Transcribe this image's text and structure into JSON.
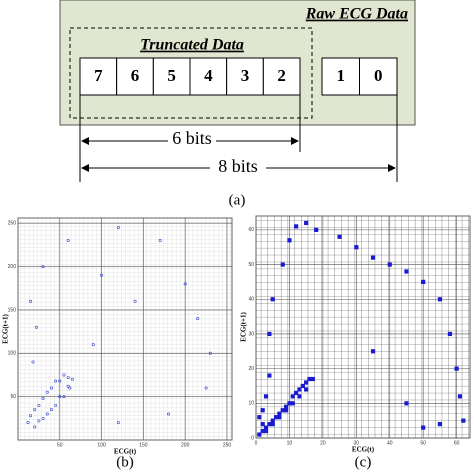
{
  "diagram": {
    "raw_label": "Raw ECG Data",
    "truncated_label": "Truncated Data",
    "kept_bits": [
      "7",
      "6",
      "5",
      "4",
      "3",
      "2"
    ],
    "dropped_bits": [
      "1",
      "0"
    ],
    "short_span": "6 bits",
    "long_span": "8 bits",
    "caption": "(a)"
  },
  "chart_data": [
    {
      "type": "scatter",
      "caption": "(b)",
      "xlabel": "ECG(t)",
      "ylabel": "ECG(t+1)",
      "color": "#3344cc",
      "xlim": [
        0,
        256
      ],
      "ylim": [
        0,
        256
      ],
      "xticks": [
        50,
        100,
        150,
        200,
        250
      ],
      "yticks": [
        50,
        100,
        150,
        200,
        250
      ],
      "grid": true,
      "x": [
        12,
        20,
        30,
        40,
        50,
        60,
        65,
        55,
        45,
        35,
        25,
        15,
        20,
        30,
        40,
        50,
        60,
        62,
        55,
        45,
        35,
        25,
        18,
        22,
        15,
        30,
        60,
        120,
        170,
        200,
        215,
        230,
        225,
        180,
        120,
        90,
        140,
        100
      ],
      "y": [
        20,
        15,
        25,
        35,
        50,
        62,
        70,
        75,
        68,
        55,
        40,
        28,
        35,
        48,
        60,
        68,
        72,
        60,
        50,
        40,
        30,
        22,
        90,
        130,
        160,
        200,
        230,
        245,
        230,
        180,
        140,
        100,
        60,
        30,
        20,
        110,
        160,
        190
      ]
    },
    {
      "type": "scatter",
      "caption": "(c)",
      "xlabel": "ECG(t)",
      "ylabel": "ECG(t+1)",
      "color": "#1a1ad0",
      "xlim": [
        0,
        64
      ],
      "ylim": [
        0,
        64
      ],
      "xticks": [
        0,
        10,
        20,
        30,
        40,
        50,
        60
      ],
      "yticks": [
        0,
        10,
        20,
        30,
        40,
        50,
        60
      ],
      "grid": true,
      "x": [
        1,
        2,
        3,
        4,
        5,
        6,
        7,
        8,
        9,
        10,
        11,
        12,
        13,
        14,
        15,
        16,
        17,
        15,
        13,
        11,
        9,
        7,
        5,
        3,
        2,
        1,
        2,
        3,
        4,
        4,
        5,
        8,
        10,
        12,
        15,
        18,
        25,
        30,
        35,
        40,
        45,
        50,
        55,
        58,
        60,
        61,
        62,
        55,
        50,
        45,
        35
      ],
      "y": [
        1,
        2,
        3,
        4,
        5,
        6,
        7,
        8,
        9,
        10,
        12,
        13,
        14,
        15,
        16,
        17,
        17,
        14,
        12,
        10,
        8,
        6,
        4,
        2,
        4,
        6,
        8,
        12,
        18,
        30,
        40,
        50,
        57,
        61,
        62,
        60,
        58,
        55,
        52,
        50,
        48,
        45,
        40,
        30,
        20,
        12,
        5,
        4,
        3,
        10,
        25
      ]
    }
  ]
}
